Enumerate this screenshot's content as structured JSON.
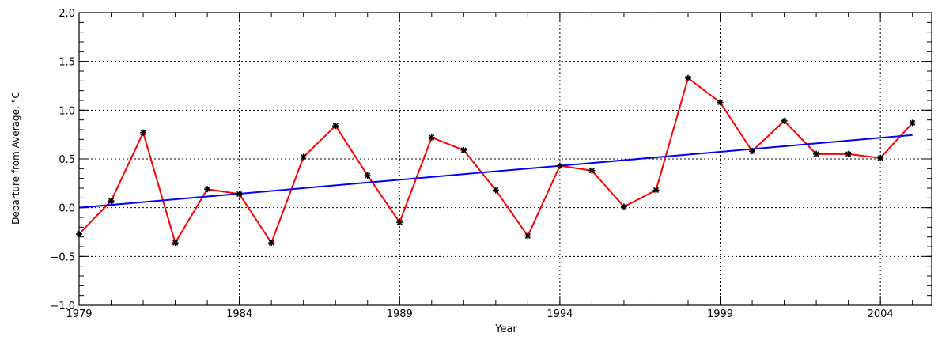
{
  "chart_data": {
    "type": "line",
    "title": "",
    "xlabel": "Year",
    "ylabel": "Departure from Average, °C",
    "xlim": [
      1979,
      2005.6
    ],
    "ylim": [
      -1.0,
      2.0
    ],
    "x_ticks": [
      1979,
      1984,
      1989,
      1994,
      1999,
      2004
    ],
    "x_tick_labels": [
      "1979",
      "1984",
      "1989",
      "1994",
      "1999",
      "2004"
    ],
    "y_ticks": [
      -1.0,
      -0.5,
      0.0,
      0.5,
      1.0,
      1.5,
      2.0
    ],
    "y_tick_labels": [
      "−1.0",
      "−0.5",
      "0.0",
      "0.5",
      "1.0",
      "1.5",
      "2.0"
    ],
    "grid": true,
    "series": [
      {
        "color": "#ff0000",
        "marker": "asterisk",
        "x": [
          1979,
          1980,
          1981,
          1982,
          1983,
          1984,
          1985,
          1986,
          1987,
          1988,
          1989,
          1990,
          1991,
          1992,
          1993,
          1994,
          1995,
          1996,
          1997,
          1998,
          1999,
          2000,
          2001,
          2002,
          2003,
          2004,
          2005
        ],
        "values": [
          -0.27,
          0.07,
          0.77,
          -0.36,
          0.19,
          0.14,
          -0.36,
          0.52,
          0.84,
          0.33,
          -0.15,
          0.72,
          0.59,
          0.18,
          -0.29,
          0.43,
          0.38,
          0.01,
          0.18,
          1.33,
          1.08,
          0.58,
          0.89,
          0.55,
          0.55,
          0.51,
          0.87
        ]
      },
      {
        "color": "#0000ff",
        "type": "trend",
        "x": [
          1979,
          2005
        ],
        "values": [
          0.0,
          0.745
        ]
      }
    ]
  }
}
